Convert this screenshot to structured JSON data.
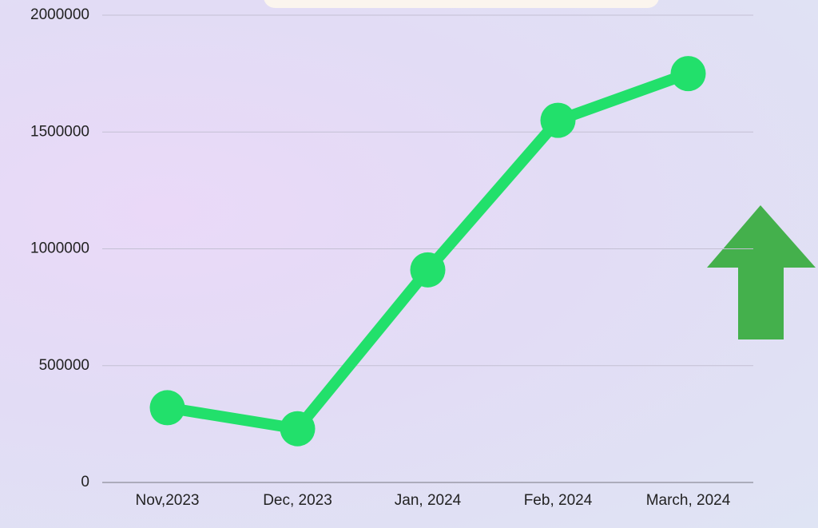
{
  "chart_data": {
    "type": "line",
    "categories": [
      "Nov,2023",
      "Dec, 2023",
      "Jan, 2024",
      "Feb, 2024",
      "March, 2024"
    ],
    "series": [
      {
        "color": "#22e06b",
        "values": [
          320000,
          230000,
          910000,
          1550000,
          1750000
        ]
      }
    ],
    "ylim": [
      0,
      2000000
    ],
    "yticks": [
      0,
      500000,
      1000000,
      1500000,
      2000000
    ],
    "grid": true
  }
}
